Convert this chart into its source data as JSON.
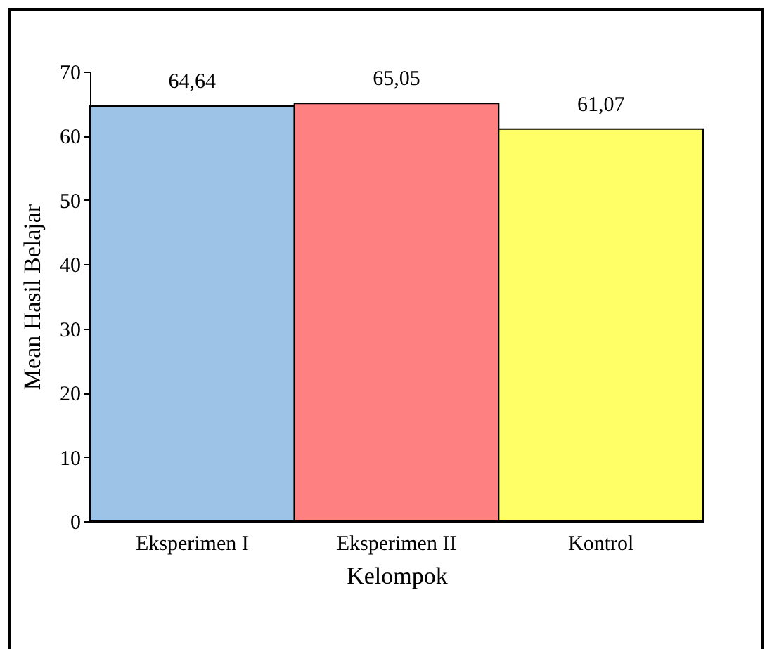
{
  "chart_data": {
    "type": "bar",
    "xlabel": "Kelompok",
    "ylabel": "Mean Hasil Belajar",
    "categories": [
      "Eksperimen I",
      "Eksperimen II",
      "Kontrol"
    ],
    "values": [
      64.64,
      65.05,
      61.07
    ],
    "colors": [
      "#9dc3e6",
      "#ff8080",
      "#ffff66"
    ],
    "value_labels": [
      "64,64",
      "65,05",
      "61,07"
    ],
    "ylim": [
      0,
      70
    ],
    "yticks": [
      0,
      10,
      20,
      30,
      40,
      50,
      60,
      70
    ],
    "grid": false
  }
}
